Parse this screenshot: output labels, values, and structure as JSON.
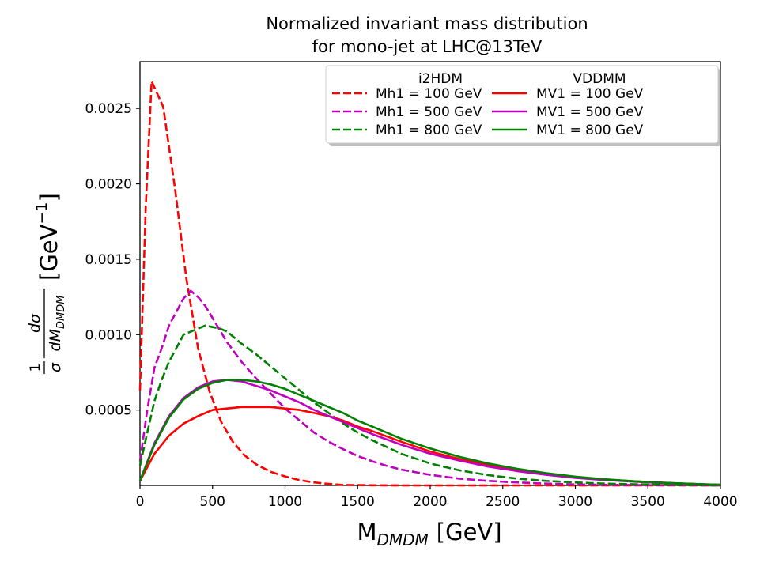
{
  "chart_data": {
    "type": "line",
    "title_line1": "Normalized invariant mass distribution",
    "title_line2": "for mono-jet at LHC@13TeV",
    "xlabel_main": "M",
    "xlabel_sub": "DMDM",
    "xlabel_unit": "[GeV]",
    "ylabel_frac_num_left": "1",
    "ylabel_frac_den_left": "σ",
    "ylabel_frac_num_right": "dσ",
    "ylabel_frac_den_right_main": "dM",
    "ylabel_frac_den_right_sub": "DMDM",
    "ylabel_unit": "[GeV",
    "ylabel_unit_exp": "−1",
    "ylabel_unit_close": "]",
    "xlim": [
      0,
      4000
    ],
    "ylim": [
      0,
      0.00281
    ],
    "x_ticks": [
      0,
      500,
      1000,
      1500,
      2000,
      2500,
      3000,
      3500,
      4000
    ],
    "x_tick_labels": [
      "0",
      "500",
      "1000",
      "1500",
      "2000",
      "2500",
      "3000",
      "3500",
      "4000"
    ],
    "y_ticks": [
      0.0005,
      0.001,
      0.0015,
      0.002,
      0.0025
    ],
    "y_tick_labels": [
      "0.0005",
      "0.0010",
      "0.0015",
      "0.0020",
      "0.0025"
    ],
    "grid": false,
    "legend": {
      "placement": "top-right",
      "col1_header": "i2HDM",
      "col2_header": "VDDMM"
    },
    "series": [
      {
        "name": "Mh1 = 100 GeV",
        "group": "i2HDM",
        "color": "#ff0000",
        "dash": true,
        "x": [
          0,
          40,
          80,
          160,
          240,
          320,
          400,
          480,
          560,
          640,
          720,
          800,
          900,
          1000,
          1100,
          1200,
          1300,
          1400,
          1500,
          1600,
          1800,
          2000,
          2500,
          3000,
          4000
        ],
        "y": [
          0.00063,
          0.00185,
          0.00268,
          0.00251,
          0.00198,
          0.00137,
          0.00091,
          0.00062,
          0.00042,
          0.00029,
          0.0002,
          0.00014,
          9e-05,
          6e-05,
          3.5e-05,
          2e-05,
          1e-05,
          3e-06,
          2e-06,
          1e-06,
          0,
          0,
          0,
          0,
          0
        ]
      },
      {
        "name": "Mh1 = 500 GeV",
        "group": "i2HDM",
        "color": "#bf00bf",
        "dash": true,
        "x": [
          0,
          50,
          100,
          150,
          200,
          250,
          300,
          350,
          400,
          450,
          500,
          600,
          700,
          800,
          900,
          1000,
          1100,
          1200,
          1300,
          1400,
          1500,
          1600,
          1700,
          1800,
          2000,
          2200,
          2400,
          2600,
          2800,
          3000,
          3200,
          3500,
          4000
        ],
        "y": [
          0.00016,
          0.0005,
          0.00078,
          0.00091,
          0.00106,
          0.00115,
          0.00124,
          0.00129,
          0.00125,
          0.00119,
          0.00111,
          0.00095,
          0.00082,
          0.00071,
          0.00061,
          0.00051,
          0.00043,
          0.00035,
          0.00029,
          0.00024,
          0.000195,
          0.00016,
          0.00013,
          0.000105,
          7e-05,
          4.5e-05,
          3e-05,
          2e-05,
          1.2e-05,
          7e-06,
          4e-06,
          2e-06,
          0
        ]
      },
      {
        "name": "Mh1 = 800 GeV",
        "group": "i2HDM",
        "color": "#008000",
        "dash": true,
        "x": [
          0,
          50,
          100,
          150,
          200,
          300,
          400,
          450,
          500,
          550,
          600,
          700,
          800,
          900,
          1000,
          1100,
          1200,
          1300,
          1400,
          1500,
          1600,
          1800,
          2000,
          2200,
          2400,
          2600,
          2800,
          3000,
          3200,
          3500,
          4000
        ],
        "y": [
          0.00013,
          0.00035,
          0.00056,
          0.0007,
          0.00082,
          0.001,
          0.00104,
          0.00106,
          0.00105,
          0.00104,
          0.00102,
          0.00094,
          0.00087,
          0.00079,
          0.00071,
          0.00063,
          0.00055,
          0.00048,
          0.00041,
          0.00035,
          0.0003,
          0.00021,
          0.000145,
          0.0001,
          6.8e-05,
          4.5e-05,
          3e-05,
          2e-05,
          1.2e-05,
          6e-06,
          0
        ]
      },
      {
        "name": "MV1 = 100 GeV",
        "group": "VDDMM",
        "color": "#ff0000",
        "dash": false,
        "x": [
          0,
          100,
          200,
          300,
          400,
          500,
          600,
          700,
          800,
          900,
          1000,
          1100,
          1200,
          1300,
          1400,
          1500,
          1600,
          1800,
          2000,
          2200,
          2400,
          2600,
          2800,
          3000,
          3200,
          3400,
          3600,
          3800,
          4000
        ],
        "y": [
          3e-05,
          0.00021,
          0.00033,
          0.00041,
          0.00046,
          0.0005,
          0.00051,
          0.00052,
          0.00052,
          0.00052,
          0.00051,
          0.0005,
          0.00048,
          0.00046,
          0.00043,
          0.00039,
          0.00036,
          0.00029,
          0.000225,
          0.000175,
          0.000135,
          0.0001,
          7.5e-05,
          5.5e-05,
          4e-05,
          2.8e-05,
          1.8e-05,
          1e-05,
          4e-06
        ]
      },
      {
        "name": "MV1 = 500 GeV",
        "group": "VDDMM",
        "color": "#bf00bf",
        "dash": false,
        "x": [
          0,
          100,
          200,
          300,
          400,
          500,
          600,
          700,
          800,
          900,
          1000,
          1100,
          1200,
          1300,
          1400,
          1500,
          1600,
          1800,
          2000,
          2200,
          2400,
          2600,
          2800,
          3000,
          3200,
          3400,
          3600,
          3800,
          4000
        ],
        "y": [
          3e-05,
          0.00028,
          0.00046,
          0.00058,
          0.00065,
          0.00069,
          0.0007,
          0.00069,
          0.00066,
          0.00063,
          0.00059,
          0.00055,
          0.0005,
          0.00046,
          0.00042,
          0.00038,
          0.00034,
          0.00027,
          0.00021,
          0.000165,
          0.000125,
          9.5e-05,
          7e-05,
          5e-05,
          3.6e-05,
          2.5e-05,
          1.6e-05,
          1e-05,
          4e-06
        ]
      },
      {
        "name": "MV1 = 800 GeV",
        "group": "VDDMM",
        "color": "#008000",
        "dash": false,
        "x": [
          0,
          100,
          200,
          300,
          400,
          500,
          600,
          700,
          800,
          900,
          1000,
          1100,
          1200,
          1300,
          1400,
          1500,
          1600,
          1800,
          2000,
          2200,
          2400,
          2600,
          2800,
          3000,
          3200,
          3400,
          3600,
          3800,
          4000
        ],
        "y": [
          3e-05,
          0.00027,
          0.00045,
          0.00057,
          0.00064,
          0.00068,
          0.0007,
          0.0007,
          0.00069,
          0.00067,
          0.00064,
          0.0006,
          0.00056,
          0.00052,
          0.00048,
          0.00043,
          0.00039,
          0.00031,
          0.000245,
          0.00019,
          0.000145,
          0.00011,
          8.1e-05,
          5.8e-05,
          4.1e-05,
          2.8e-05,
          1.8e-05,
          1e-05,
          4e-06
        ]
      }
    ]
  }
}
